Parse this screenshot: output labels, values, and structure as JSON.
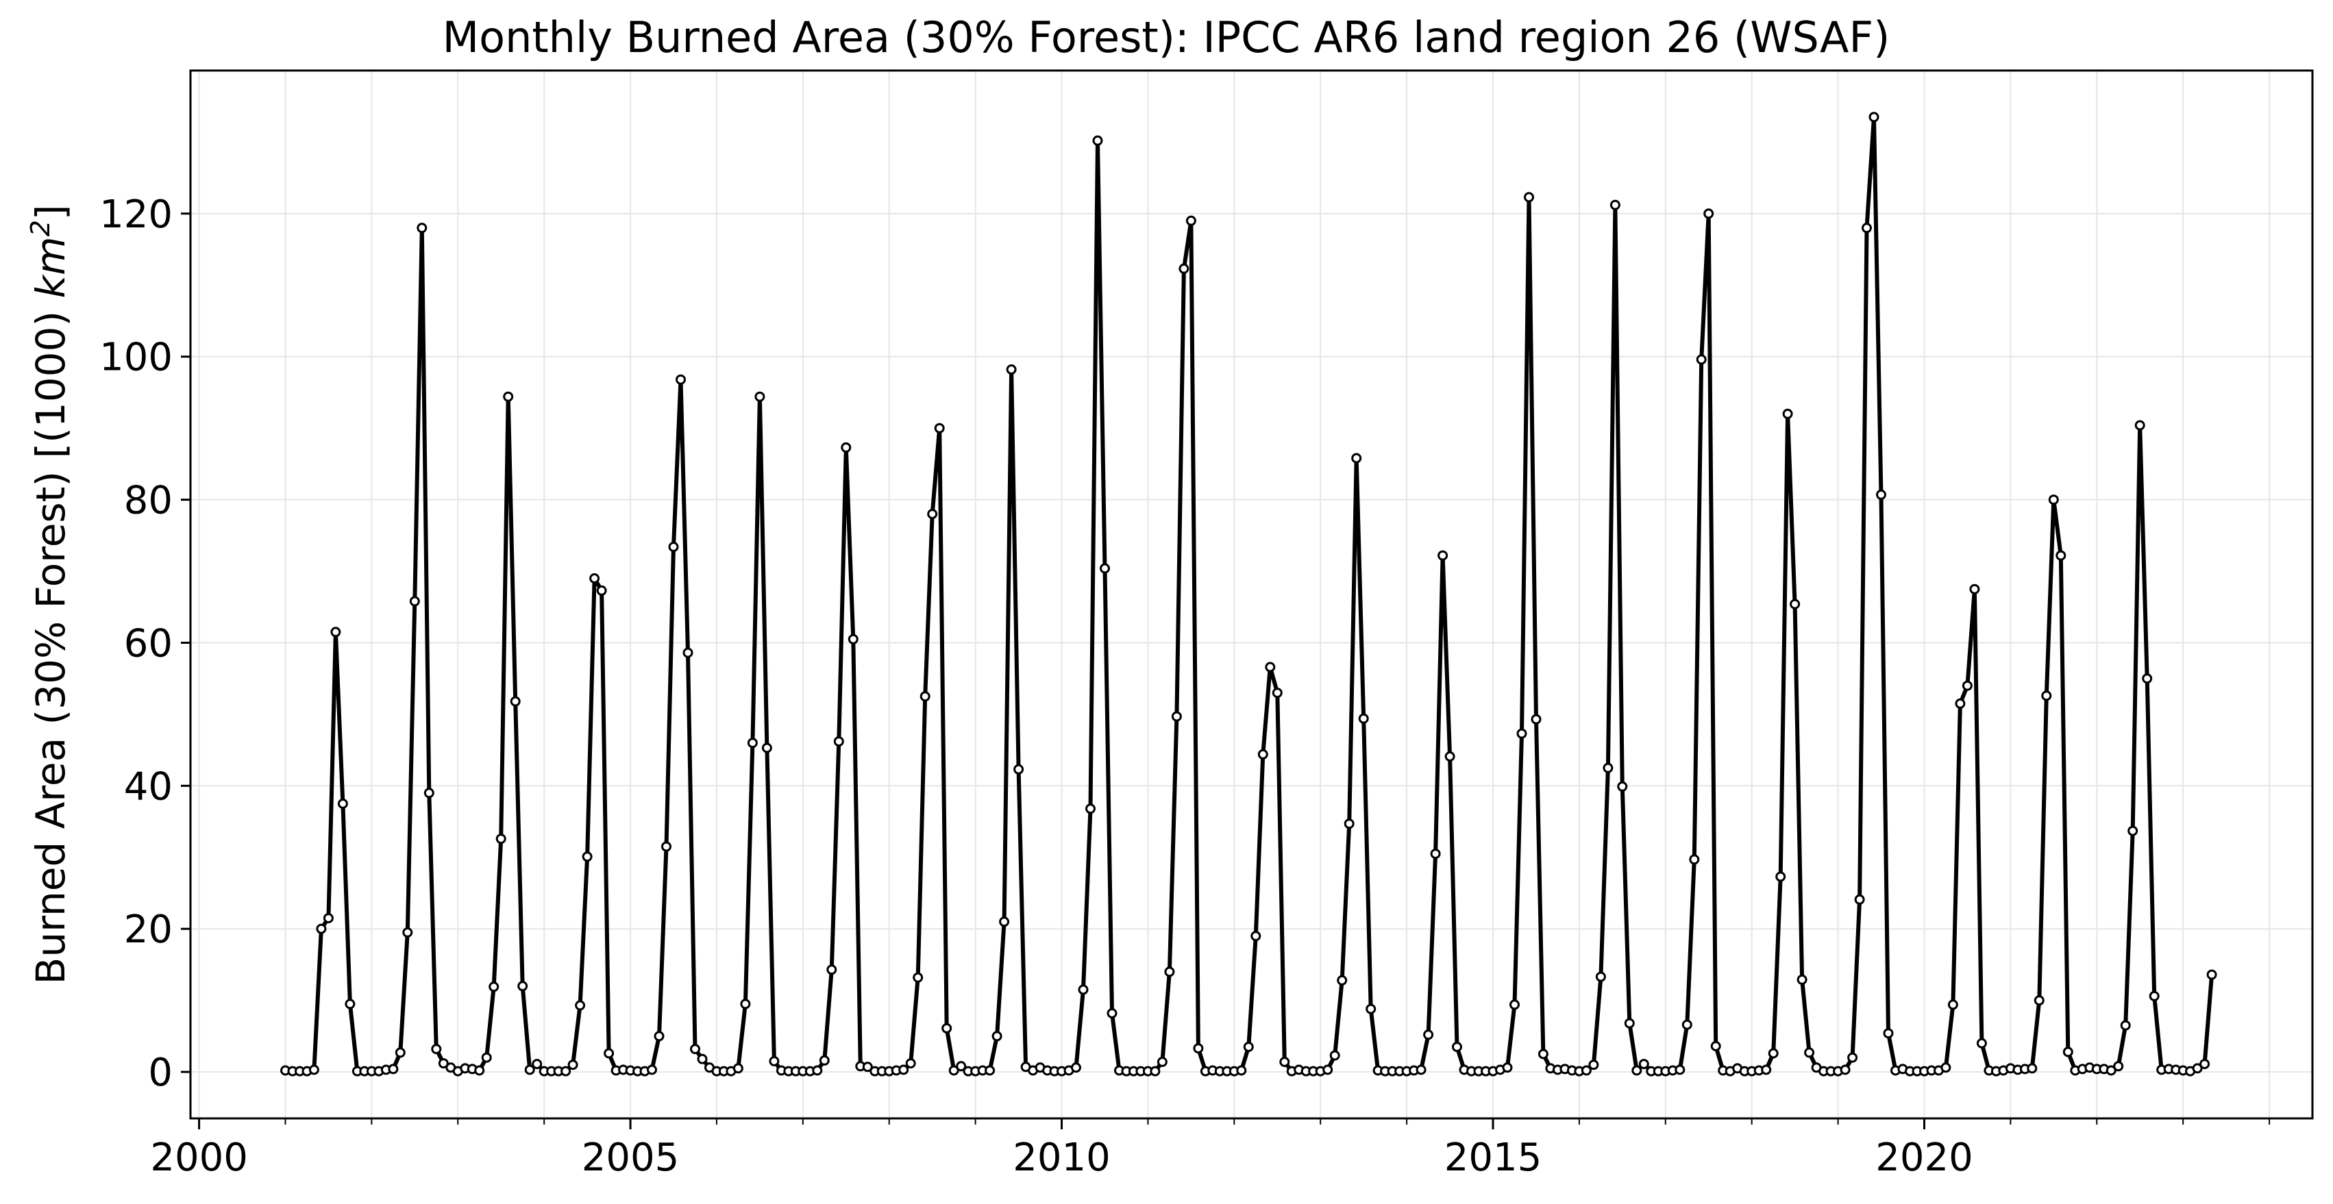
{
  "chart_data": {
    "type": "line",
    "title": "Monthly Burned Area (30% Forest): IPCC AR6 land region 26 (WSAF)",
    "xlabel": "",
    "ylabel": "Burned Area (30% Forest) [(1000) km²]",
    "ylabel_main": "Burned Area (30% Forest) [(1000) ",
    "ylabel_unit": "km",
    "ylabel_exponent": "2",
    "ylabel_close": "]",
    "x_start": "2001-01",
    "x_frequency": "monthly",
    "xlim": [
      1999.9,
      2024.5
    ],
    "ylim": [
      -6.5,
      140
    ],
    "xticks": [
      2000,
      2005,
      2010,
      2015,
      2020
    ],
    "xtick_labels": [
      "2000",
      "2005",
      "2010",
      "2015",
      "2020"
    ],
    "yticks": [
      0,
      20,
      40,
      60,
      80,
      100,
      120
    ],
    "ytick_labels": [
      "0",
      "20",
      "40",
      "60",
      "80",
      "100",
      "120"
    ],
    "grid": true,
    "line_color": "#000000",
    "marker_face_color": "#ffffff",
    "series": [
      {
        "values": [
          0.2,
          0.1,
          0.1,
          0.1,
          0.3,
          20,
          21.5,
          61.5,
          37.5,
          9.5,
          0.1,
          0.1,
          0.1,
          0.1,
          0.3,
          0.4,
          2.7,
          19.5,
          65.8,
          118,
          39,
          3.2,
          1.2,
          0.6,
          0.1,
          0.5,
          0.4,
          0.2,
          2,
          11.9,
          32.6,
          94.4,
          51.8,
          12,
          0.3,
          1.1,
          0.1,
          0.1,
          0.1,
          0.1,
          1,
          9.3,
          30.1,
          69,
          67.3,
          2.6,
          0.2,
          0.3,
          0.2,
          0.1,
          0.1,
          0.3,
          5,
          31.5,
          73.4,
          96.8,
          58.6,
          3.2,
          1.8,
          0.6,
          0.1,
          0.1,
          0.1,
          0.5,
          9.5,
          46,
          94.4,
          45.3,
          1.5,
          0.2,
          0.1,
          0.1,
          0.1,
          0.1,
          0.2,
          1.6,
          14.3,
          46.2,
          87.3,
          60.5,
          0.8,
          0.7,
          0.1,
          0.1,
          0.1,
          0.2,
          0.3,
          1.2,
          13.2,
          52.5,
          78,
          90,
          6.1,
          0.2,
          0.8,
          0.1,
          0.1,
          0.2,
          0.2,
          5,
          21,
          98.2,
          42.3,
          0.7,
          0.2,
          0.6,
          0.2,
          0.1,
          0.1,
          0.2,
          0.6,
          11.5,
          36.8,
          130.2,
          70.4,
          8.2,
          0.2,
          0.1,
          0.1,
          0.1,
          0.1,
          0.1,
          1.4,
          14,
          49.7,
          112.3,
          119,
          3.3,
          0.1,
          0.2,
          0.1,
          0.1,
          0.1,
          0.2,
          3.5,
          19,
          44.4,
          56.6,
          53,
          1.4,
          0.1,
          0.3,
          0.1,
          0.1,
          0.1,
          0.3,
          2.3,
          12.8,
          34.7,
          85.8,
          49.4,
          8.8,
          0.2,
          0.1,
          0.1,
          0.1,
          0.1,
          0.2,
          0.3,
          5.2,
          30.5,
          72.2,
          44.1,
          3.5,
          0.3,
          0.1,
          0.1,
          0.1,
          0.1,
          0.3,
          0.6,
          9.4,
          47.3,
          122.3,
          49.3,
          2.5,
          0.5,
          0.3,
          0.4,
          0.2,
          0.1,
          0.2,
          1,
          13.3,
          42.5,
          121.2,
          39.9,
          6.8,
          0.2,
          1.1,
          0.1,
          0.1,
          0.1,
          0.2,
          0.3,
          6.6,
          29.7,
          99.6,
          120,
          3.6,
          0.2,
          0.1,
          0.5,
          0.1,
          0.1,
          0.2,
          0.3,
          2.6,
          27.3,
          92,
          65.4,
          12.9,
          2.7,
          0.6,
          0.1,
          0.1,
          0.1,
          0.3,
          2,
          24.1,
          118,
          133.5,
          80.7,
          5.4,
          0.2,
          0.4,
          0.1,
          0.1,
          0.1,
          0.2,
          0.2,
          0.6,
          9.4,
          51.5,
          54,
          67.5,
          4,
          0.2,
          0.1,
          0.2,
          0.5,
          0.3,
          0.4,
          0.5,
          10,
          52.6,
          80,
          72.2,
          2.8,
          0.2,
          0.4,
          0.6,
          0.4,
          0.4,
          0.2,
          0.8,
          6.5,
          33.7,
          90.4,
          55,
          10.6,
          0.3,
          0.4,
          0.3,
          0.2,
          0.1,
          0.5,
          1.1,
          13.6
        ]
      }
    ]
  }
}
